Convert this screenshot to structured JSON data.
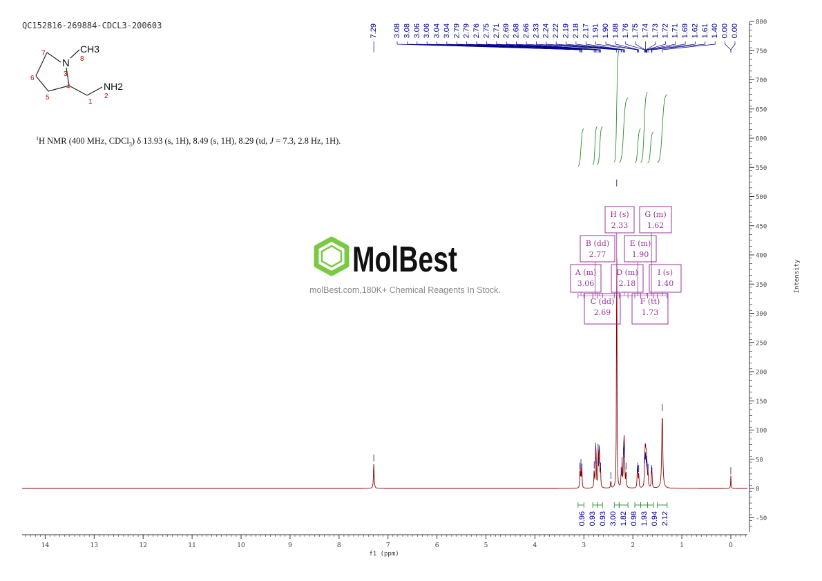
{
  "sample_id": "QC152816-269884-CDCL3-200603",
  "nmr_description": {
    "nucleus_sup": "1",
    "part1": "H NMR (400 MHz, CDCl",
    "sub3": "3",
    "part2": ") δ 13.93 (s, 1H), 8.49 (s, 1H), 8.29 (td, ",
    "j_italic": "J",
    "part3": " = 7.3, 2.8 Hz, 1H)."
  },
  "watermark": {
    "brand": "MolBest",
    "tagline": "molBest.com,180K+ Chemical Reagents In Stock."
  },
  "structure": {
    "atoms": [
      "CH3",
      "N",
      "NH2"
    ],
    "numbers": [
      "1",
      "2",
      "3",
      "4",
      "5",
      "6",
      "7",
      "8"
    ]
  },
  "colors": {
    "spectrum": "#8b0000",
    "peak_labels": "#00008b",
    "integral": "#2e8b2e",
    "multiplet_box": "#9b309b",
    "axis": "#333333",
    "atom_numbers": "#cc0000"
  },
  "chart_data": {
    "type": "line",
    "title": "",
    "xlabel": "f1 (ppm)",
    "ylabel": "Intensity",
    "xlim": [
      14.5,
      -0.35
    ],
    "ylim": [
      -80,
      800
    ],
    "x_ticks": [
      "14",
      "13",
      "12",
      "11",
      "10",
      "9",
      "8",
      "7",
      "6",
      "5",
      "4",
      "3",
      "2",
      "1",
      "0"
    ],
    "y_ticks": [
      "800",
      "750",
      "700",
      "650",
      "600",
      "550",
      "500",
      "450",
      "400",
      "350",
      "300",
      "250",
      "200",
      "150",
      "100",
      "50",
      "0",
      "-50"
    ],
    "series": [
      {
        "peaks": [
          {
            "ppm": 7.29,
            "height": 44,
            "width": 0.008
          },
          {
            "ppm": 3.08,
            "height": 30,
            "width": 0.006
          },
          {
            "ppm": 3.06,
            "height": 36,
            "width": 0.006
          },
          {
            "ppm": 3.04,
            "height": 28,
            "width": 0.006
          },
          {
            "ppm": 2.79,
            "height": 32,
            "width": 0.006
          },
          {
            "ppm": 2.76,
            "height": 64,
            "width": 0.006
          },
          {
            "ppm": 2.75,
            "height": 40,
            "width": 0.006
          },
          {
            "ppm": 2.71,
            "height": 62,
            "width": 0.006
          },
          {
            "ppm": 2.69,
            "height": 60,
            "width": 0.006
          },
          {
            "ppm": 2.68,
            "height": 40,
            "width": 0.006
          },
          {
            "ppm": 2.66,
            "height": 30,
            "width": 0.006
          },
          {
            "ppm": 2.45,
            "height": 14,
            "width": 0.006
          },
          {
            "ppm": 2.33,
            "height": 515,
            "width": 0.005
          },
          {
            "ppm": 2.24,
            "height": 22,
            "width": 0.006
          },
          {
            "ppm": 2.22,
            "height": 40,
            "width": 0.006
          },
          {
            "ppm": 2.19,
            "height": 56,
            "width": 0.006
          },
          {
            "ppm": 2.18,
            "height": 62,
            "width": 0.006
          },
          {
            "ppm": 2.17,
            "height": 50,
            "width": 0.006
          },
          {
            "ppm": 2.14,
            "height": 30,
            "width": 0.006
          },
          {
            "ppm": 1.91,
            "height": 24,
            "width": 0.006
          },
          {
            "ppm": 1.9,
            "height": 30,
            "width": 0.006
          },
          {
            "ppm": 1.88,
            "height": 26,
            "width": 0.006
          },
          {
            "ppm": 1.76,
            "height": 40,
            "width": 0.006
          },
          {
            "ppm": 1.75,
            "height": 46,
            "width": 0.006
          },
          {
            "ppm": 1.74,
            "height": 48,
            "width": 0.006
          },
          {
            "ppm": 1.73,
            "height": 42,
            "width": 0.006
          },
          {
            "ppm": 1.72,
            "height": 36,
            "width": 0.006
          },
          {
            "ppm": 1.71,
            "height": 30,
            "width": 0.006
          },
          {
            "ppm": 1.69,
            "height": 28,
            "width": 0.006
          },
          {
            "ppm": 1.62,
            "height": 26,
            "width": 0.006
          },
          {
            "ppm": 1.61,
            "height": 22,
            "width": 0.006
          },
          {
            "ppm": 1.4,
            "height": 130,
            "width": 0.012
          },
          {
            "ppm": 0.0,
            "height": 22,
            "width": 0.005
          }
        ]
      }
    ],
    "peak_labels": [
      "7.29",
      "3.08",
      "3.08",
      "3.06",
      "3.06",
      "3.04",
      "3.04",
      "2.79",
      "2.79",
      "2.76",
      "2.75",
      "2.71",
      "2.69",
      "2.68",
      "2.66",
      "2.33",
      "2.24",
      "2.22",
      "2.19",
      "2.18",
      "2.17",
      "1.91",
      "1.90",
      "1.88",
      "1.76",
      "1.75",
      "1.74",
      "1.73",
      "1.72",
      "1.71",
      "1.69",
      "1.62",
      "1.61",
      "1.40",
      "0.00",
      "0.00"
    ],
    "integrals": [
      {
        "value": "0.96",
        "from": 3.12,
        "to": 3.0
      },
      {
        "value": "0.93",
        "from": 2.82,
        "to": 2.73
      },
      {
        "value": "0.93",
        "from": 2.73,
        "to": 2.62
      },
      {
        "value": "3.00",
        "from": 2.38,
        "to": 2.28
      },
      {
        "value": "1.82",
        "from": 2.28,
        "to": 2.1
      },
      {
        "value": "0.98",
        "from": 1.96,
        "to": 1.84
      },
      {
        "value": "1.93",
        "from": 1.84,
        "to": 1.7
      },
      {
        "value": "0.94",
        "from": 1.7,
        "to": 1.58
      },
      {
        "value": "2.12",
        "from": 1.5,
        "to": 1.3
      }
    ],
    "multiplets": [
      {
        "label": "A (m)",
        "shift": "3.06"
      },
      {
        "label": "B (dd)",
        "shift": "2.77"
      },
      {
        "label": "C (dd)",
        "shift": "2.69"
      },
      {
        "label": "D (m)",
        "shift": "2.18"
      },
      {
        "label": "E (m)",
        "shift": "1.90"
      },
      {
        "label": "F (tt)",
        "shift": "1.73"
      },
      {
        "label": "G (m)",
        "shift": "1.62"
      },
      {
        "label": "H (s)",
        "shift": "2.33"
      },
      {
        "label": "I (s)",
        "shift": "1.40"
      }
    ]
  }
}
